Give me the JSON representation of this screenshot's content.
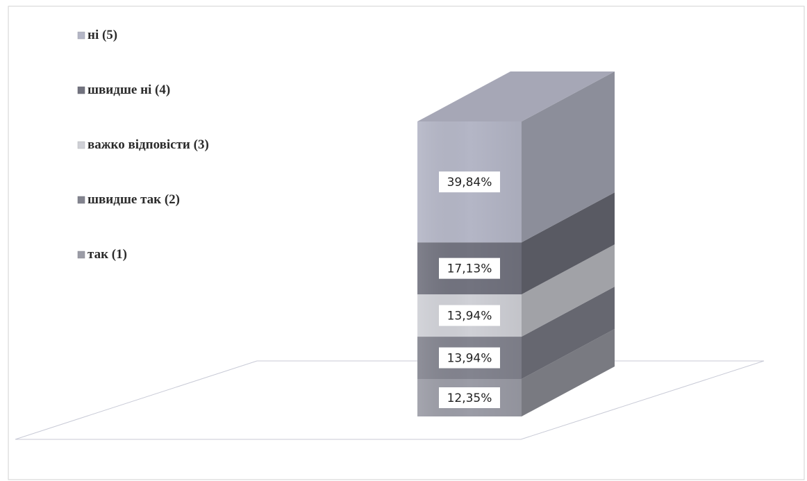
{
  "chart_data": {
    "type": "bar",
    "variant": "stacked-3d",
    "title": "",
    "xlabel": "",
    "ylabel": "",
    "legend_position": "top-left",
    "grid": false,
    "ylim": [
      0,
      100
    ],
    "series": [
      {
        "name": "ні (5)",
        "value": 39.84,
        "label": "39,84%",
        "color": "#b4b6c6"
      },
      {
        "name": "швидше ні (4)",
        "value": 17.13,
        "label": "17,13%",
        "color": "#72737f"
      },
      {
        "name": "важко відповісти (3)",
        "value": 13.94,
        "label": "13,94%",
        "color": "#cfd0d6"
      },
      {
        "name": "швидше так (2)",
        "value": 13.94,
        "label": "13,94%",
        "color": "#83848f"
      },
      {
        "name": "так (1)",
        "value": 12.35,
        "label": "12,35%",
        "color": "#9b9ca6"
      }
    ]
  }
}
